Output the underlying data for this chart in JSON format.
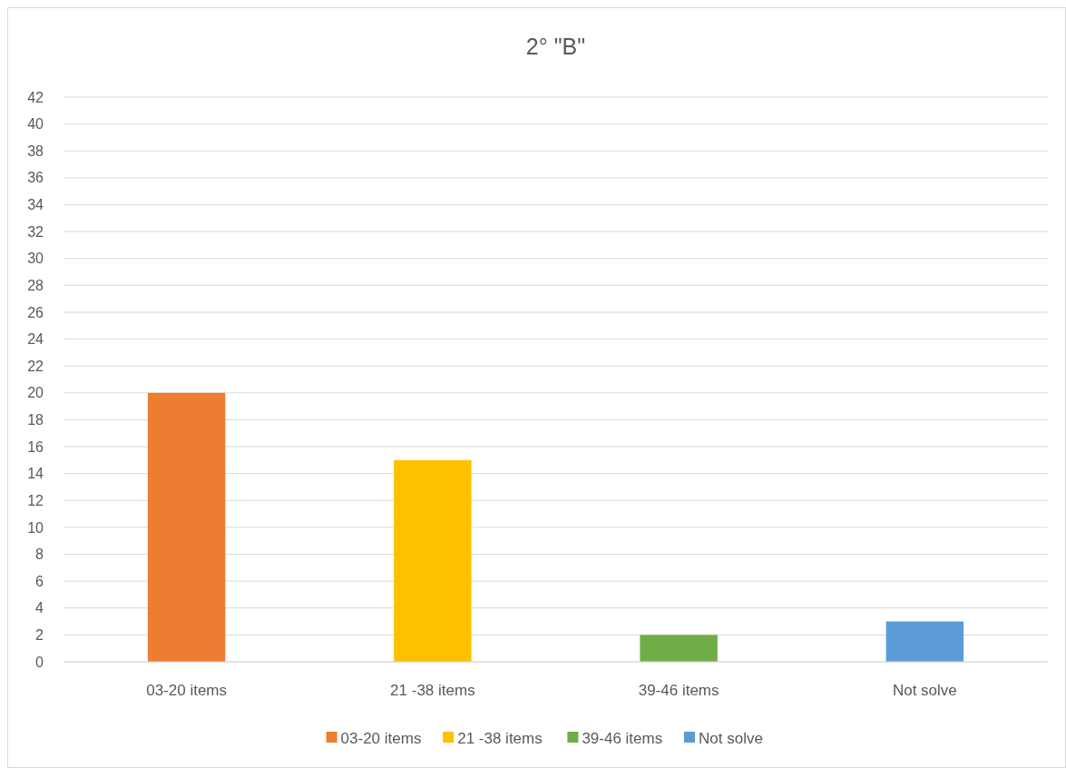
{
  "chart_data": {
    "type": "bar",
    "title": "2° \"B\"",
    "categories": [
      "03-20 items",
      "21 -38 items",
      "39-46 items",
      "Not solve"
    ],
    "series": [
      {
        "name": "03-20 items",
        "color": "#ed7d31",
        "values": [
          20,
          null,
          null,
          null
        ]
      },
      {
        "name": "21 -38 items",
        "color": "#ffc000",
        "values": [
          null,
          15,
          null,
          null
        ]
      },
      {
        "name": "39-46 items",
        "color": "#70ad47",
        "values": [
          null,
          null,
          2,
          null
        ]
      },
      {
        "name": "Not solve",
        "color": "#5b9bd5",
        "values": [
          null,
          null,
          null,
          3
        ]
      }
    ],
    "ylim": [
      0,
      42
    ],
    "yticks": [
      0,
      2,
      4,
      6,
      8,
      10,
      12,
      14,
      16,
      18,
      20,
      22,
      24,
      26,
      28,
      30,
      32,
      34,
      36,
      38,
      40,
      42
    ],
    "grid": "y",
    "legend": "bottom"
  }
}
